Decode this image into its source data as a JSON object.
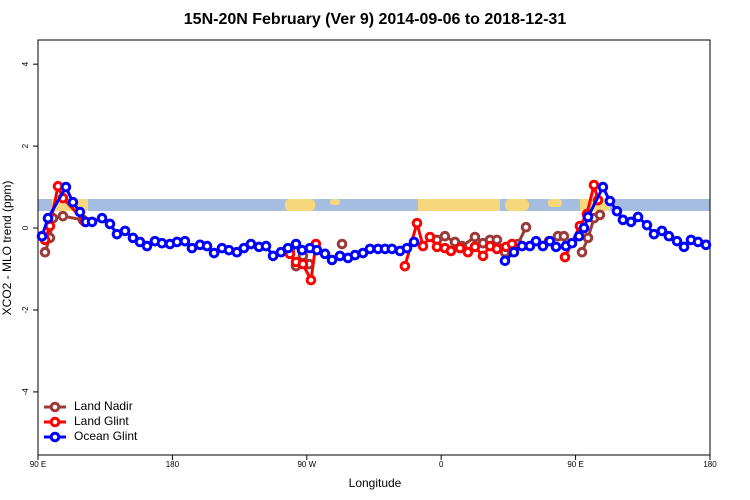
{
  "chart_data": {
    "type": "line",
    "title": "15N-20N February (Ver 9)   2014-09-06 to 2018-12-31",
    "x_label": "Longitude",
    "y_label": "XCO2 - MLO trend (ppm)",
    "xlim": [
      90,
      540
    ],
    "ylim": [
      -5.54,
      4.59
    ],
    "xticks": [
      {
        "value": 90,
        "label": "90 E"
      },
      180,
      {
        "value": 270,
        "label": "90 W"
      },
      {
        "value": 360,
        "label": "0"
      },
      {
        "value": 450,
        "label": "90 E"
      },
      {
        "value": 540,
        "label": "180"
      }
    ],
    "yticks": [
      -4,
      -2,
      0,
      2,
      4
    ],
    "legend": "bottom-left",
    "series": [
      {
        "name": "Land Nadir",
        "color": "#9b3b38",
        "x": [
          94.7,
          98.0,
          100.0,
          106.7,
          120.1,
          null,
          258.7,
          262.8,
          267.4,
          271.5,
          null,
          293.6,
          null,
          357.2,
          362.5,
          369.2,
          373.9,
          382.6,
          388.0,
          392.7,
          397.3,
          402.7,
          407.4,
          411.4,
          416.8,
          null,
          432.2,
          438.2,
          442.2,
          null,
          454.3,
          458.3,
          462.3,
          466.3
        ],
        "values": [
          -0.59,
          -0.24,
          0.24,
          0.29,
          0.2,
          null,
          -0.54,
          -0.93,
          -0.68,
          -0.88,
          null,
          -0.39,
          null,
          -0.29,
          -0.2,
          -0.34,
          -0.44,
          -0.22,
          -0.37,
          -0.29,
          -0.29,
          -0.59,
          -0.44,
          -0.39,
          0.02,
          null,
          -0.32,
          -0.2,
          -0.2,
          null,
          -0.59,
          -0.24,
          0.24,
          0.32
        ]
      },
      {
        "name": "Land Glint",
        "color": "#ff0000",
        "x": [
          94.7,
          98.0,
          103.4,
          106.7,
          121.5,
          null,
          258.7,
          262.8,
          267.4,
          272.8,
          276.1,
          null,
          335.7,
          343.8,
          347.8,
          352.5,
          357.2,
          362.5,
          366.5,
          372.6,
          377.9,
          382.6,
          388.0,
          392.7,
          397.3,
          403.4,
          407.4,
          null,
          442.9,
          452.9,
          457.6,
          462.3,
          465.0
        ],
        "values": [
          -0.29,
          0.05,
          1.02,
          0.73,
          0.15,
          null,
          -0.63,
          -0.83,
          -0.88,
          -1.27,
          -0.39,
          null,
          -0.93,
          0.12,
          -0.44,
          -0.22,
          -0.46,
          -0.49,
          -0.56,
          -0.49,
          -0.59,
          -0.46,
          -0.68,
          -0.44,
          -0.51,
          -0.46,
          -0.39,
          null,
          -0.71,
          0.05,
          0.34,
          1.05,
          0.68
        ]
      },
      {
        "name": "Ocean Glint",
        "color": "#0000ff",
        "x": [
          92.7,
          96.7,
          108.7,
          113.4,
          118.1,
          122.1,
          126.2,
          132.9,
          138.2,
          142.9,
          148.3,
          153.6,
          158.3,
          163.0,
          168.3,
          173.0,
          178.4,
          183.1,
          188.4,
          193.1,
          198.5,
          203.2,
          207.9,
          213.2,
          217.9,
          223.2,
          227.9,
          232.6,
          238.0,
          242.7,
          247.4,
          252.7,
          257.4,
          262.8,
          266.8,
          272.1,
          276.8,
          282.2,
          286.9,
          292.2,
          297.6,
          302.3,
          307.6,
          312.3,
          317.7,
          322.4,
          327.0,
          332.4,
          337.1,
          341.8,
          null,
          402.7,
          408.7,
          414.1,
          419.4,
          423.5,
          428.1,
          432.8,
          436.9,
          443.5,
          447.6,
          452.3,
          455.6,
          458.3,
          468.3,
          473.0,
          477.7,
          481.7,
          487.1,
          491.8,
          497.8,
          502.5,
          507.8,
          512.5,
          517.9,
          522.6,
          527.3,
          532.0,
          537.3
        ],
        "values": [
          -0.2,
          0.24,
          1.0,
          0.63,
          0.39,
          0.15,
          0.15,
          0.24,
          0.1,
          -0.15,
          -0.07,
          -0.24,
          -0.34,
          -0.44,
          -0.32,
          -0.37,
          -0.39,
          -0.34,
          -0.32,
          -0.49,
          -0.41,
          -0.44,
          -0.61,
          -0.49,
          -0.54,
          -0.59,
          -0.49,
          -0.39,
          -0.46,
          -0.44,
          -0.68,
          -0.59,
          -0.49,
          -0.39,
          -0.54,
          -0.49,
          -0.54,
          -0.63,
          -0.78,
          -0.68,
          -0.73,
          -0.66,
          -0.61,
          -0.51,
          -0.51,
          -0.51,
          -0.51,
          -0.56,
          -0.49,
          -0.34,
          null,
          -0.8,
          -0.59,
          -0.44,
          -0.44,
          -0.32,
          -0.44,
          -0.32,
          -0.46,
          -0.44,
          -0.37,
          -0.2,
          0,
          0.27,
          1.0,
          0.66,
          0.41,
          0.2,
          0.15,
          0.27,
          0.07,
          -0.15,
          -0.07,
          -0.2,
          -0.32,
          -0.46,
          -0.29,
          -0.34,
          -0.41
        ]
      }
    ]
  }
}
